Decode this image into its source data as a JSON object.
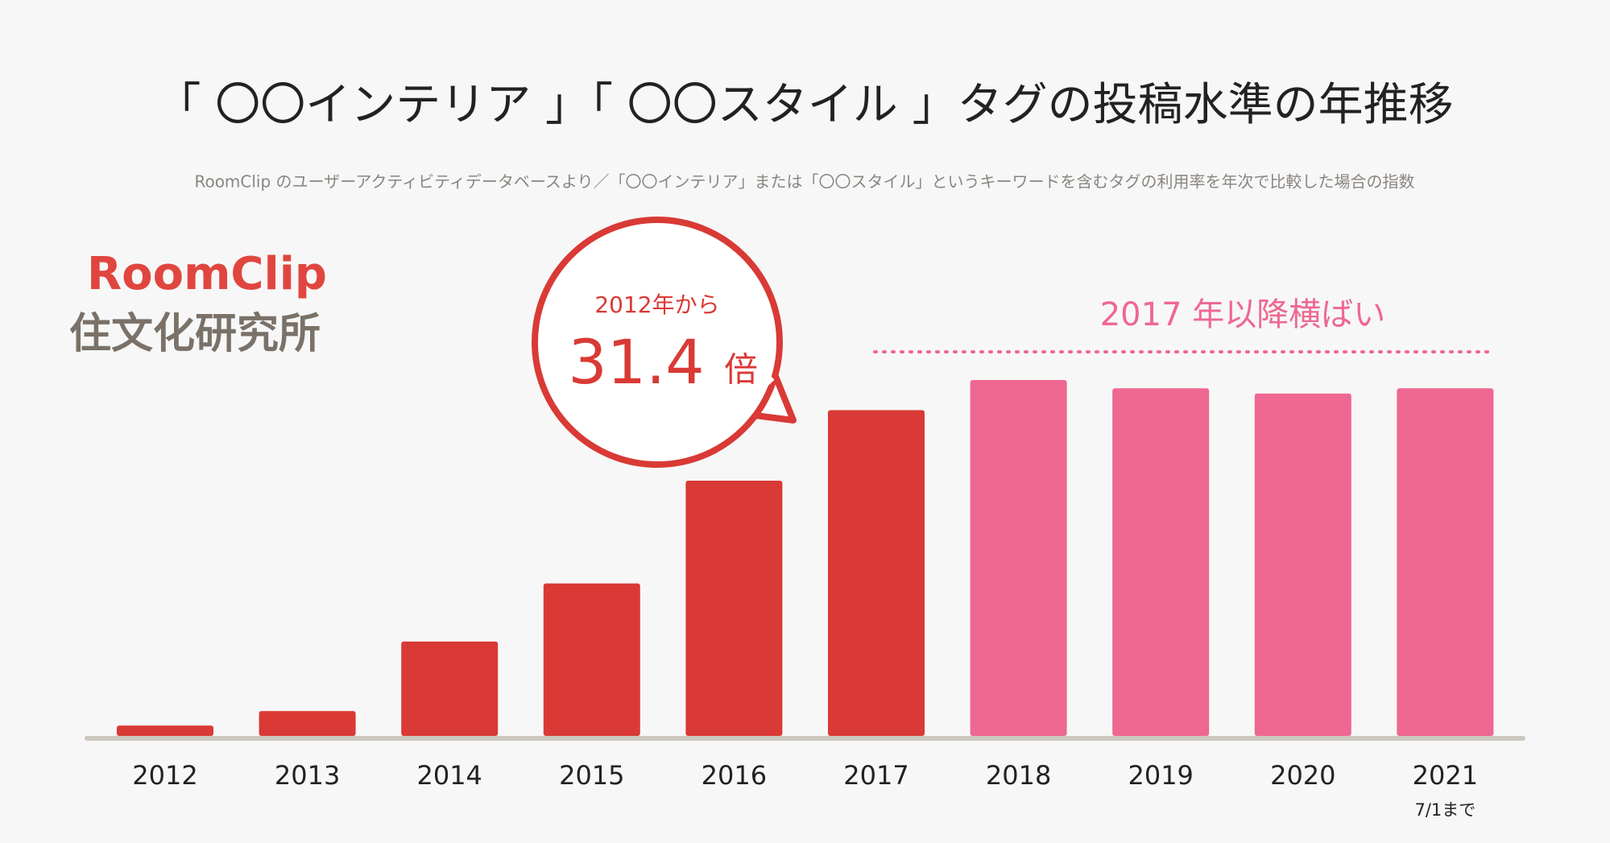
{
  "chart_data": {
    "type": "bar",
    "title": "「 〇〇インテリア 」「 〇〇スタイル 」タグの投稿水準の年推移",
    "subtitle": "RoomClip のユーザーアクティビティデータベースより／「〇〇インテリア」または「〇〇スタイル」というキーワードを含むタグの利用率を年次で比較した場合の指数",
    "logo": {
      "brand": "RoomClip",
      "lab": "住文化研究所"
    },
    "callout": {
      "lead": "2012年から",
      "value": 31.4,
      "unit": "倍"
    },
    "annotation": "2017 年以降横ばい",
    "categories": [
      "2012",
      "2013",
      "2014",
      "2015",
      "2016",
      "2017",
      "2018",
      "2019",
      "2020",
      "2021"
    ],
    "category_notes": [
      null,
      null,
      null,
      null,
      null,
      null,
      null,
      null,
      null,
      "7/1まで"
    ],
    "values": [
      1,
      2.4,
      9.1,
      14.7,
      24.6,
      31.4,
      34.3,
      33.5,
      33.0,
      33.5
    ],
    "colors": [
      "#d93a35",
      "#d93a35",
      "#d93a35",
      "#d93a35",
      "#d93a35",
      "#d93a35",
      "#ee6891",
      "#ee6891",
      "#ee6891",
      "#ee6891"
    ]
  }
}
